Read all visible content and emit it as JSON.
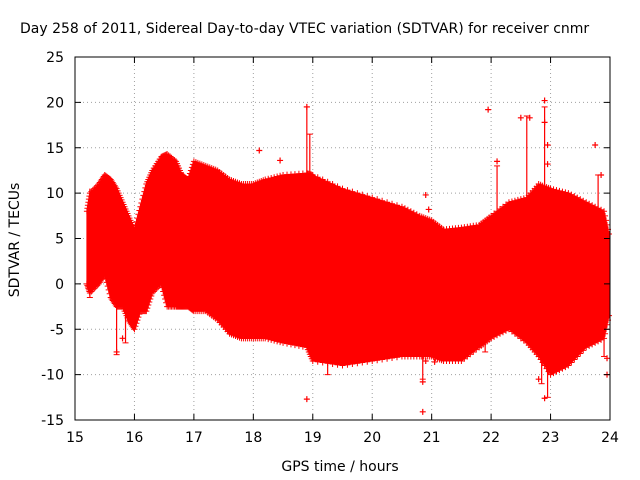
{
  "chart_data": {
    "type": "scatter",
    "title": "Day 258 of 2011, Sidereal Day-to-day VTEC variation (SDTVAR) for receiver cnmr",
    "xlabel": "GPS time / hours",
    "ylabel": "SDTVAR / TECUs",
    "xlim": [
      15,
      24
    ],
    "ylim": [
      -15,
      25
    ],
    "xticks": [
      "15",
      "16",
      "17",
      "18",
      "19",
      "20",
      "21",
      "22",
      "23",
      "24"
    ],
    "yticks": [
      "-15",
      "-10",
      "-5",
      "0",
      "5",
      "10",
      "15",
      "20",
      "25"
    ],
    "grid": true,
    "series_color": "#ff0000",
    "band": {
      "x": [
        15.2,
        15.25,
        15.4,
        15.5,
        15.6,
        15.7,
        15.8,
        15.9,
        16.0,
        16.1,
        16.2,
        16.3,
        16.45,
        16.55,
        16.7,
        16.8,
        16.9,
        17.0,
        17.2,
        17.4,
        17.6,
        17.8,
        18.0,
        18.2,
        18.5,
        18.9,
        19.0,
        19.5,
        20.0,
        20.5,
        20.8,
        21.0,
        21.2,
        21.5,
        21.8,
        22.0,
        22.3,
        22.6,
        22.8,
        23.0,
        23.3,
        23.6,
        23.9,
        24.0
      ],
      "upper": [
        8.0,
        10.0,
        11.0,
        12.0,
        11.5,
        10.5,
        9.0,
        7.5,
        6.0,
        8.5,
        11.0,
        12.5,
        14.0,
        14.3,
        13.5,
        12.0,
        11.5,
        13.5,
        13.0,
        12.5,
        11.5,
        11.0,
        11.0,
        11.5,
        12.0,
        12.2,
        12.0,
        10.5,
        9.5,
        8.5,
        7.5,
        7.0,
        6.0,
        6.2,
        6.5,
        7.5,
        9.0,
        9.5,
        11.0,
        10.5,
        10.0,
        9.0,
        8.0,
        5.0
      ],
      "lower": [
        0.0,
        -1.0,
        0.0,
        1.0,
        -1.5,
        -2.5,
        -2.5,
        -4.0,
        -5.0,
        -3.0,
        -3.0,
        -1.0,
        0.0,
        -2.5,
        -2.5,
        -2.5,
        -2.5,
        -3.0,
        -3.0,
        -4.0,
        -5.5,
        -6.0,
        -6.0,
        -6.0,
        -6.5,
        -7.0,
        -8.5,
        -9.0,
        -8.5,
        -8.0,
        -8.0,
        -8.0,
        -8.5,
        -8.5,
        -7.0,
        -6.0,
        -5.0,
        -6.5,
        -8.0,
        -10.0,
        -9.0,
        -7.0,
        -6.0,
        -3.0
      ]
    },
    "outliers": [
      [
        15.7,
        -7.5
      ],
      [
        15.75,
        -1.0
      ],
      [
        15.8,
        -6.0
      ],
      [
        18.1,
        14.7
      ],
      [
        18.45,
        13.6
      ],
      [
        18.9,
        19.5
      ],
      [
        18.9,
        -12.7
      ],
      [
        20.85,
        -14.1
      ],
      [
        20.85,
        -10.8
      ],
      [
        20.9,
        9.8
      ],
      [
        20.95,
        8.2
      ],
      [
        20.9,
        -8.5
      ],
      [
        21.05,
        -8.6
      ],
      [
        21.95,
        19.2
      ],
      [
        22.1,
        13.5
      ],
      [
        22.5,
        18.3
      ],
      [
        22.65,
        18.3
      ],
      [
        22.8,
        -10.5
      ],
      [
        22.9,
        20.2
      ],
      [
        22.9,
        17.8
      ],
      [
        22.95,
        15.3
      ],
      [
        22.95,
        13.2
      ],
      [
        22.9,
        -12.6
      ],
      [
        23.75,
        15.3
      ],
      [
        23.85,
        12.0
      ],
      [
        23.95,
        -10.0
      ],
      [
        23.95,
        -8.2
      ]
    ],
    "spikes": [
      {
        "x": 15.25,
        "from": 10.5,
        "to": -1.5
      },
      {
        "x": 15.7,
        "from": 4.0,
        "to": -7.8
      },
      {
        "x": 15.85,
        "from": 5.0,
        "to": -6.5
      },
      {
        "x": 18.9,
        "from": 12.0,
        "to": 19.5
      },
      {
        "x": 18.95,
        "from": 12.0,
        "to": 16.5
      },
      {
        "x": 19.25,
        "from": -8.0,
        "to": -10.0
      },
      {
        "x": 20.85,
        "from": -7.0,
        "to": -10.5
      },
      {
        "x": 21.9,
        "from": -6.0,
        "to": -7.5
      },
      {
        "x": 22.1,
        "from": 8.0,
        "to": 13.0
      },
      {
        "x": 22.6,
        "from": 9.0,
        "to": 18.5
      },
      {
        "x": 22.65,
        "from": -6.0,
        "to": -2.5
      },
      {
        "x": 22.85,
        "from": -6.0,
        "to": -11.0
      },
      {
        "x": 22.9,
        "from": 9.0,
        "to": 19.5
      },
      {
        "x": 22.95,
        "from": -7.0,
        "to": -12.5
      },
      {
        "x": 23.8,
        "from": 8.0,
        "to": 12.0
      },
      {
        "x": 23.9,
        "from": -5.0,
        "to": -8.0
      }
    ]
  }
}
